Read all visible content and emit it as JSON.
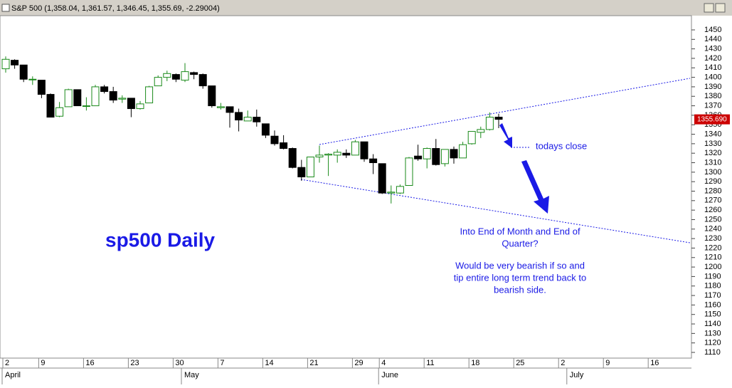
{
  "chart_data": {
    "type": "candlestick",
    "title": "S&P 500 (1,358.04, 1,361.57, 1,346.45, 1,355.69, -2.29004)",
    "categories": [
      "2",
      null,
      null,
      null,
      "9",
      null,
      null,
      null,
      null,
      "16",
      null,
      null,
      null,
      null,
      "23",
      null,
      null,
      null,
      null,
      "30",
      null,
      null,
      null,
      null,
      "7",
      null,
      null,
      null,
      null,
      "14",
      null,
      null,
      null,
      null,
      "21",
      null,
      null,
      null,
      null,
      "29",
      null,
      null,
      "4",
      null,
      null,
      null,
      null,
      "11",
      null,
      null,
      null,
      null,
      "18",
      null,
      null,
      null,
      null,
      "25",
      null,
      null,
      null,
      null,
      "2",
      null,
      null,
      null,
      null,
      "9",
      null,
      null,
      null,
      null,
      "16",
      null,
      null
    ],
    "months": [
      "April",
      null,
      null,
      null,
      null,
      null,
      null,
      null,
      null,
      null,
      null,
      null,
      null,
      null,
      null,
      null,
      null,
      null,
      null,
      null,
      "May",
      null,
      null,
      null,
      null,
      null,
      null,
      null,
      null,
      null,
      null,
      null,
      null,
      null,
      null,
      null,
      null,
      null,
      null,
      null,
      null,
      null,
      "June",
      null,
      null,
      null,
      null,
      null,
      null,
      null,
      null,
      null,
      null,
      null,
      null,
      null,
      null,
      null,
      null,
      null,
      null,
      null,
      null,
      "July",
      null,
      null,
      null,
      null,
      null,
      null,
      null,
      null,
      null,
      null,
      null,
      null
    ],
    "open": [
      1409,
      1418,
      1413,
      1398,
      1397,
      1382,
      1359,
      1369,
      1387,
      1370,
      1370,
      1390,
      1385,
      1377,
      1378,
      1367,
      1373,
      1391,
      1400,
      1403,
      1397,
      1405,
      1403,
      1391,
      1368,
      1369,
      1363,
      1354,
      1358,
      1351,
      1338,
      1331,
      1325,
      1305,
      1295,
      1316,
      1318,
      1318,
      1320,
      1318,
      1332,
      1314,
      1309,
      1278,
      1278,
      1286,
      1317,
      1314,
      1325,
      1309,
      1324,
      1315,
      1330,
      1342,
      1345,
      1358.04,
      null,
      null,
      null,
      null,
      null,
      null,
      null,
      null,
      null,
      null,
      null,
      null,
      null,
      null,
      null,
      null,
      null,
      null,
      null,
      null
    ],
    "high": [
      1422,
      1419,
      1413,
      1401,
      1397,
      1383,
      1374,
      1388,
      1387,
      1379,
      1392,
      1392,
      1390,
      1381,
      1378,
      1375,
      1391,
      1402,
      1407,
      1404,
      1415,
      1406,
      1404,
      1391,
      1373,
      1369,
      1367,
      1365,
      1366,
      1351,
      1344,
      1339,
      1326,
      1313,
      1316,
      1328,
      1320,
      1324,
      1324,
      1334,
      1332,
      1319,
      1309,
      1286,
      1287,
      1316,
      1329,
      1326,
      1335,
      1324,
      1327,
      1332,
      1343,
      1348,
      1363,
      1361.57,
      null,
      null,
      null,
      null,
      null,
      null,
      null,
      null,
      null,
      null,
      null,
      null,
      null,
      null,
      null,
      null,
      null,
      null,
      null,
      null
    ],
    "low": [
      1405,
      1409,
      1395,
      1392,
      1378,
      1358,
      1358,
      1369,
      1370,
      1365,
      1370,
      1383,
      1373,
      1373,
      1358,
      1366,
      1373,
      1391,
      1396,
      1395,
      1395,
      1398,
      1388,
      1368,
      1366,
      1347,
      1343,
      1354,
      1348,
      1336,
      1328,
      1324,
      1304,
      1291,
      1295,
      1310,
      1296,
      1310,
      1315,
      1318,
      1311,
      1298,
      1277,
      1267,
      1277,
      1286,
      1312,
      1304,
      1307,
      1306,
      1309,
      1315,
      1329,
      1336,
      1344,
      1346.45,
      null,
      null,
      null,
      null,
      null,
      null,
      null,
      null,
      null,
      null,
      null,
      null,
      null,
      null,
      null,
      null,
      null,
      null,
      null,
      null
    ],
    "close": [
      1419,
      1413,
      1398,
      1398,
      1382,
      1358,
      1368,
      1387,
      1370,
      1370,
      1390,
      1385,
      1376,
      1378,
      1367,
      1372,
      1390,
      1400,
      1404,
      1398,
      1406,
      1403,
      1391,
      1370,
      1369,
      1363,
      1355,
      1358,
      1353,
      1339,
      1330,
      1325,
      1305,
      1295,
      1316,
      1318,
      1319,
      1321,
      1318,
      1332,
      1314,
      1310,
      1278,
      1279,
      1285,
      1315,
      1314,
      1325,
      1308,
      1324,
      1315,
      1329,
      1343,
      1345,
      1358,
      1355.69,
      null,
      null,
      null,
      null,
      null,
      null,
      null,
      null,
      null,
      null,
      null,
      null,
      null,
      null,
      null,
      null,
      null,
      null,
      null,
      null
    ],
    "last_label": "1355.690",
    "up_color": "#1a8a1a",
    "down_color": "#000000",
    "ylim": [
      1104,
      1465
    ],
    "yticks": [
      1110,
      1120,
      1130,
      1140,
      1150,
      1160,
      1170,
      1180,
      1190,
      1200,
      1210,
      1220,
      1230,
      1240,
      1250,
      1260,
      1270,
      1280,
      1290,
      1300,
      1310,
      1320,
      1330,
      1340,
      1350,
      1360,
      1370,
      1380,
      1390,
      1400,
      1410,
      1420,
      1430,
      1440,
      1450
    ],
    "annotations": [
      "sp500 Daily",
      "todays close",
      "Into End of Month and End of",
      "Quarter?",
      "Would be very bearish if so and",
      "tip entire long term trend back to",
      "bearish side."
    ]
  }
}
